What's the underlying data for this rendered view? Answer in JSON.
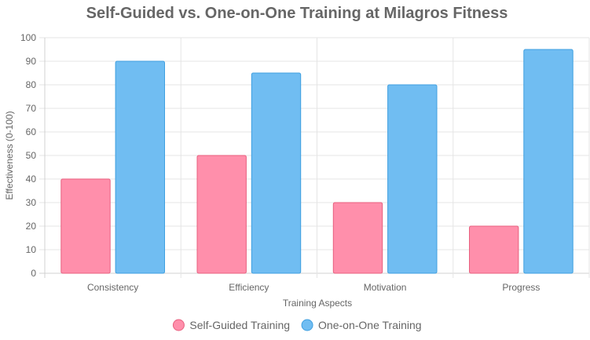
{
  "chart_data": {
    "type": "bar",
    "title": "Self-Guided vs. One-on-One Training at Milagros Fitness",
    "xlabel": "Training Aspects",
    "ylabel": "Effectiveness (0-100)",
    "categories": [
      "Consistency",
      "Efficiency",
      "Motivation",
      "Progress"
    ],
    "ylim": [
      0,
      100
    ],
    "ytick_step": 10,
    "grid": true,
    "legend_position": "bottom",
    "series": [
      {
        "name": "Self-Guided Training",
        "values": [
          40,
          50,
          30,
          20
        ],
        "color": "#ff8fab",
        "border_color": "#e8607f"
      },
      {
        "name": "One-on-One Training",
        "values": [
          90,
          85,
          80,
          95
        ],
        "color": "#70bdf2",
        "border_color": "#3f9fe0"
      }
    ]
  }
}
